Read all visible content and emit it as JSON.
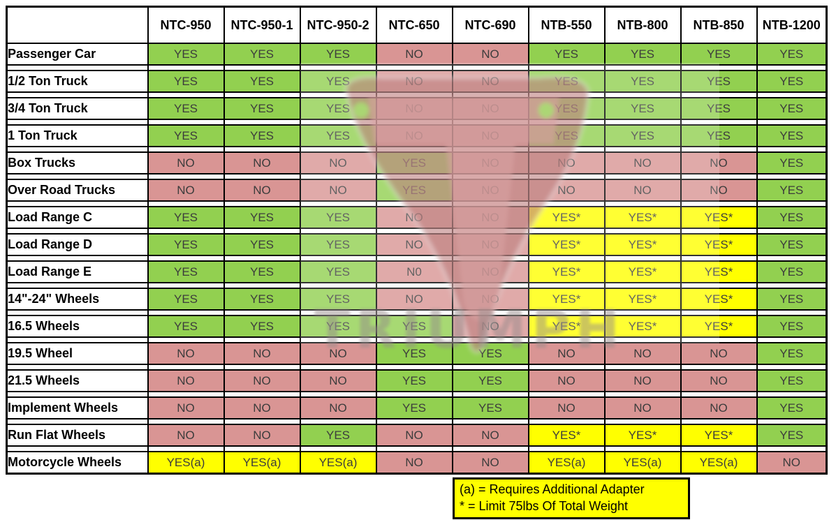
{
  "chart_data": {
    "type": "table",
    "title": "Tire changer model compatibility matrix",
    "corner_label": "",
    "columns": [
      "NTC-950",
      "NTC-950-1",
      "NTC-950-2",
      "NTC-650",
      "NTC-690",
      "NTB-550",
      "NTB-800",
      "NTB-850",
      "NTB-1200"
    ],
    "rows": [
      {
        "label": "Passenger Car",
        "values": [
          "YES",
          "YES",
          "YES",
          "NO",
          "NO",
          "YES",
          "YES",
          "YES",
          "YES"
        ]
      },
      {
        "label": "1/2 Ton Truck",
        "values": [
          "YES",
          "YES",
          "YES",
          "NO",
          "NO",
          "YES",
          "YES",
          "YES",
          "YES"
        ]
      },
      {
        "label": "3/4 Ton Truck",
        "values": [
          "YES",
          "YES",
          "YES",
          "NO",
          "NO",
          "YES",
          "YES",
          "YES",
          "YES"
        ]
      },
      {
        "label": "1 Ton Truck",
        "values": [
          "YES",
          "YES",
          "YES",
          "NO",
          "NO",
          "YES",
          "YES",
          "YES",
          "YES"
        ]
      },
      {
        "label": "Box Trucks",
        "values": [
          "NO",
          "NO",
          "NO",
          "YES",
          "NO",
          "NO",
          "NO",
          "NO",
          "YES"
        ]
      },
      {
        "label": "Over Road Trucks",
        "values": [
          "NO",
          "NO",
          "NO",
          "YES",
          "NO",
          "NO",
          "NO",
          "NO",
          "YES"
        ]
      },
      {
        "label": "Load Range C",
        "values": [
          "YES",
          "YES",
          "YES",
          "NO",
          "NO",
          "YES*",
          "YES*",
          "YES*",
          "YES"
        ]
      },
      {
        "label": "Load Range D",
        "values": [
          "YES",
          "YES",
          "YES",
          "NO",
          "NO",
          "YES*",
          "YES*",
          "YES*",
          "YES"
        ]
      },
      {
        "label": "Load Range E",
        "values": [
          "YES",
          "YES",
          "YES",
          "N0",
          "NO",
          "YES*",
          "YES*",
          "YES*",
          "YES"
        ]
      },
      {
        "label": "14\"-24\" Wheels",
        "values": [
          "YES",
          "YES",
          "YES",
          "NO",
          "NO",
          "YES*",
          "YES*",
          "YES*",
          "YES"
        ]
      },
      {
        "label": "16.5 Wheels",
        "values": [
          "YES",
          "YES",
          "YES",
          "YES",
          "NO",
          "YES*",
          "YES*",
          "YES*",
          "YES"
        ]
      },
      {
        "label": "19.5 Wheel",
        "values": [
          "NO",
          "NO",
          "NO",
          "YES",
          "YES",
          "NO",
          "NO",
          "NO",
          "YES"
        ]
      },
      {
        "label": "21.5 Wheels",
        "values": [
          "NO",
          "NO",
          "NO",
          "YES",
          "YES",
          "NO",
          "NO",
          "NO",
          "YES"
        ]
      },
      {
        "label": "Implement Wheels",
        "values": [
          "NO",
          "NO",
          "NO",
          "YES",
          "YES",
          "NO",
          "NO",
          "NO",
          "YES"
        ]
      },
      {
        "label": "Run Flat Wheels",
        "values": [
          "NO",
          "NO",
          "YES",
          "NO",
          "NO",
          "YES*",
          "YES*",
          "YES*",
          "YES"
        ]
      },
      {
        "label": "Motorcycle Wheels",
        "values": [
          "YES(a)",
          "YES(a)",
          "YES(a)",
          "NO",
          "NO",
          "YES(a)",
          "YES(a)",
          "YES(a)",
          "NO"
        ]
      }
    ],
    "layout": {
      "grid": true,
      "separator_rows": true,
      "legend_position": "bottom-center"
    }
  },
  "legend": {
    "line1": "(a) = Requires Additional Adapter",
    "line2": "* = Limit 75lbs Of Total Weight"
  },
  "watermark": {
    "text": "TRIUMPH"
  },
  "colors": {
    "yes_green": "#92D050",
    "no_red": "#D99594",
    "conditional_yellow": "#FFFF00",
    "border_black": "#000000",
    "value_text": "#3c3c3c",
    "watermark_pink": "#bc7f7f",
    "watermark_light_pink": "#d9a3a3",
    "watermark_gray_text": "#958a8a"
  }
}
